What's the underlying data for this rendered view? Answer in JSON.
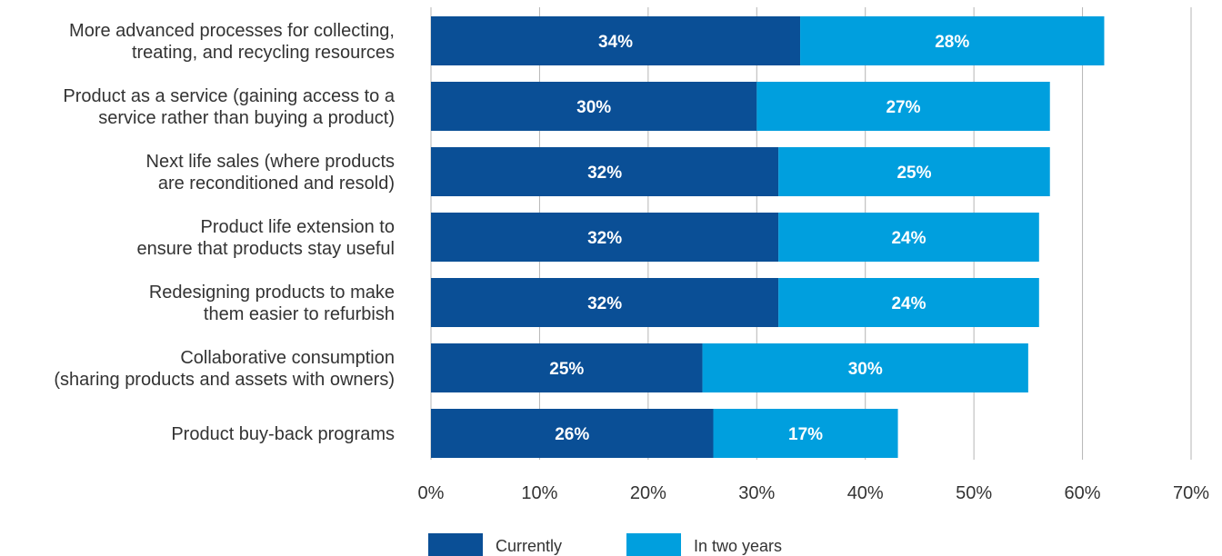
{
  "chart_data": {
    "type": "bar",
    "orientation": "horizontal",
    "stacked": true,
    "categories": [
      [
        "More advanced processes for collecting,",
        "treating, and recycling resources"
      ],
      [
        "Product as a service (gaining access to a",
        "service rather than buying a product)"
      ],
      [
        "Next life sales (where products",
        "are reconditioned and resold)"
      ],
      [
        "Product life extension to",
        "ensure that products stay useful"
      ],
      [
        "Redesigning products to make",
        "them easier to refurbish"
      ],
      [
        "Collaborative consumption",
        "(sharing products and assets with owners)"
      ],
      [
        "Product buy-back programs"
      ]
    ],
    "series": [
      {
        "name": "Currently",
        "color": "#0a4f96",
        "values": [
          34,
          30,
          32,
          32,
          32,
          25,
          26
        ]
      },
      {
        "name": "In two years",
        "color": "#009fde",
        "values": [
          28,
          27,
          25,
          24,
          24,
          30,
          17
        ]
      }
    ],
    "xlim": [
      0,
      70
    ],
    "xticks": [
      0,
      10,
      20,
      30,
      40,
      50,
      60,
      70
    ],
    "tick_suffix": "%",
    "value_suffix": "%",
    "grid": "vertical",
    "legend_position": "bottom"
  }
}
